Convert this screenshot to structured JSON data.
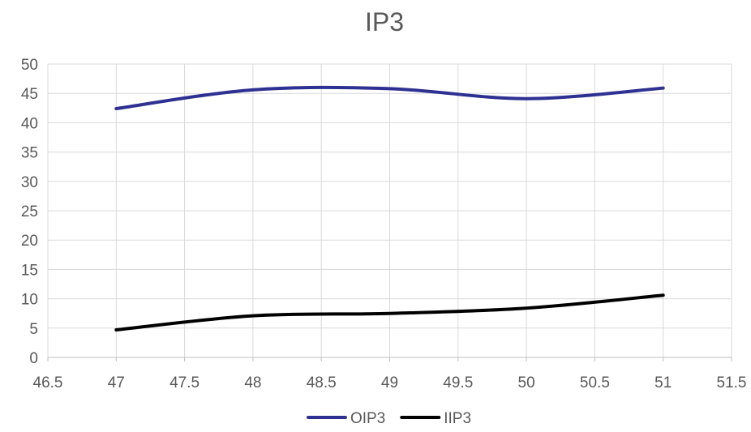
{
  "chart_data": {
    "type": "line",
    "title": "IP3",
    "xlabel": "",
    "ylabel": "",
    "xlim": [
      46.5,
      51.5
    ],
    "ylim": [
      0,
      50
    ],
    "x_ticks": [
      46.5,
      47,
      47.5,
      48,
      48.5,
      49,
      49.5,
      50,
      50.5,
      51,
      51.5
    ],
    "y_ticks": [
      0,
      5,
      10,
      15,
      20,
      25,
      30,
      35,
      40,
      45,
      50
    ],
    "grid": true,
    "legend_position": "bottom",
    "smooth": true,
    "x": [
      47,
      48,
      49,
      50,
      51
    ],
    "series": [
      {
        "name": "OIP3",
        "color": "#2E3192",
        "values": [
          42.4,
          45.6,
          45.8,
          44.1,
          45.9
        ]
      },
      {
        "name": "IIP3",
        "color": "#000000",
        "values": [
          4.7,
          7.1,
          7.5,
          8.4,
          10.6
        ]
      }
    ]
  }
}
